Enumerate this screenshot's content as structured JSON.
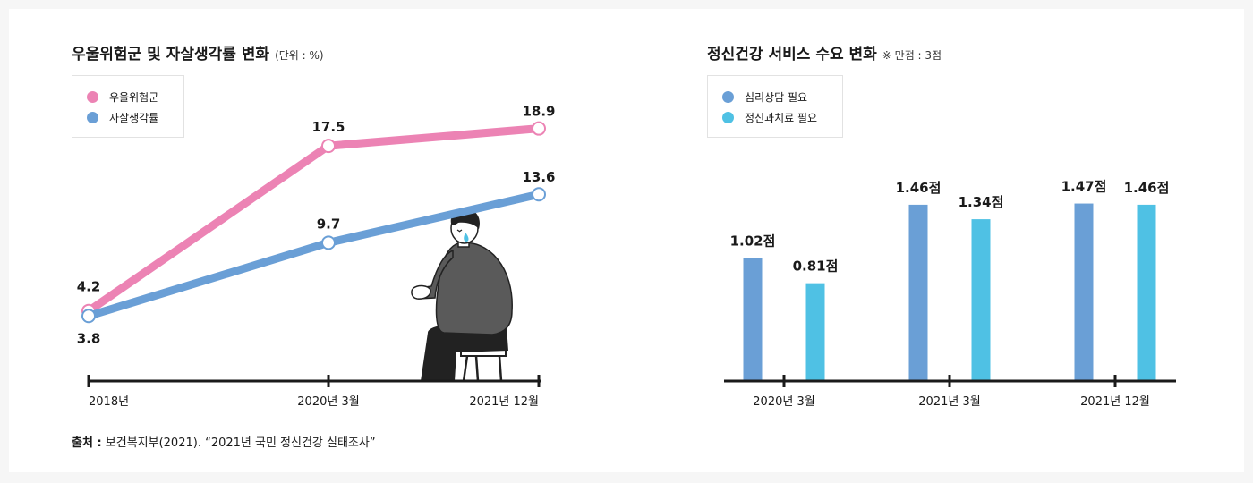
{
  "left_chart": {
    "title": "우울위험군 및 자살생각률 변화",
    "unit": "(단위 : %)"
  },
  "right_chart": {
    "title": "정신건강 서비스 수요 변화",
    "note": "※ 만점 : 3점"
  },
  "source": {
    "label": "출처 :",
    "text": " 보건복지부(2021). “2021년 국민 정신건강 실태조사”"
  },
  "chart_data": [
    {
      "type": "line",
      "title": "우울위험군 및 자살생각률 변화",
      "unit": "(단위 : %)",
      "categories": [
        "2018년",
        "2020년 3월",
        "2021년 12월"
      ],
      "series": [
        {
          "name": "우울위험군",
          "values": [
            4.2,
            17.5,
            18.9
          ],
          "labels": [
            "4.2",
            "17.5",
            "18.9"
          ],
          "color": "#ec83b4"
        },
        {
          "name": "자살생각률",
          "values": [
            3.8,
            9.7,
            13.6
          ],
          "labels": [
            "3.8",
            "9.7",
            "13.6"
          ],
          "color": "#6a9fd6"
        }
      ],
      "grid": false,
      "legend": "top-left"
    },
    {
      "type": "bar",
      "title": "정신건강 서비스 수요 변화",
      "note": "※ 만점 : 3점",
      "categories": [
        "2020년 3월",
        "2021년 3월",
        "2021년 12월"
      ],
      "series": [
        {
          "name": "심리상담 필요",
          "values": [
            1.02,
            1.46,
            1.47
          ],
          "labels": [
            "1.02점",
            "1.46점",
            "1.47점"
          ],
          "color": "#6a9fd6"
        },
        {
          "name": "정신과치료 필요",
          "values": [
            0.81,
            1.34,
            1.46
          ],
          "labels": [
            "0.81점",
            "1.34점",
            "1.46점"
          ],
          "color": "#4fc1e4"
        }
      ],
      "ylim": [
        0,
        3
      ],
      "grid": false,
      "legend": "top-left"
    }
  ]
}
